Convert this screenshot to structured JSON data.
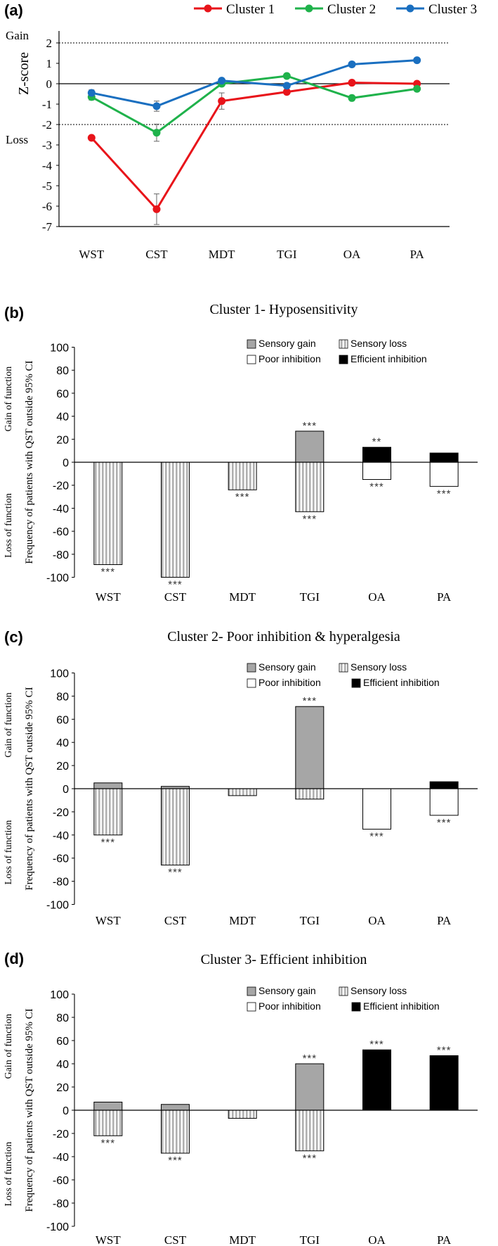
{
  "panels": [
    {
      "letter": "(a)"
    },
    {
      "letter": "(b)"
    },
    {
      "letter": "(c)"
    },
    {
      "letter": "(d)"
    }
  ],
  "chart_data": [
    {
      "type": "line",
      "panel": "(a)",
      "categories": [
        "WST",
        "CST",
        "MDT",
        "TGI",
        "OA",
        "PA"
      ],
      "ylabel": "Z-score",
      "ylim": [
        -7,
        2.5
      ],
      "yticks": [
        2,
        1,
        0,
        -1,
        -2,
        -3,
        -4,
        -5,
        -6,
        -7
      ],
      "reference_lines": [
        2,
        -2,
        0
      ],
      "annotations": [
        "Gain",
        "Loss"
      ],
      "legend_position": "top",
      "series": [
        {
          "name": "Cluster 1",
          "color": "#e8141a",
          "values": [
            -2.65,
            -6.15,
            -0.85,
            -0.4,
            0.05,
            0.0
          ],
          "errors": [
            0.1,
            0.75,
            0.4,
            0.12,
            0.05,
            0.08
          ]
        },
        {
          "name": "Cluster 2",
          "color": "#1fb24b",
          "values": [
            -0.65,
            -2.4,
            0.0,
            0.38,
            -0.7,
            -0.25
          ],
          "errors": [
            0.15,
            0.42,
            0.05,
            0.05,
            0.05,
            0.05
          ]
        },
        {
          "name": "Cluster 3",
          "color": "#1a6fc0",
          "values": [
            -0.45,
            -1.1,
            0.15,
            -0.1,
            0.95,
            1.15
          ],
          "errors": [
            0.15,
            0.25,
            0.05,
            0.05,
            0.05,
            0.05
          ]
        }
      ]
    },
    {
      "type": "bar",
      "panel": "(b)",
      "title": "Cluster 1- Hyposensitivity",
      "categories": [
        "WST",
        "CST",
        "MDT",
        "TGI",
        "OA",
        "PA"
      ],
      "ylabel": "Frequency of patients with QST outside 95% CI",
      "side_labels": [
        "Gain of function",
        "Loss of function"
      ],
      "ylim": [
        -100,
        100
      ],
      "yticks": [
        100,
        80,
        60,
        40,
        20,
        0,
        -20,
        -40,
        -60,
        -80,
        -100
      ],
      "legend": [
        "Sensory gain",
        "Sensory loss",
        "Poor inhibition",
        "Efficient inhibition"
      ],
      "series": [
        {
          "name": "Sensory gain",
          "values": [
            0,
            0,
            0,
            27,
            0,
            0
          ]
        },
        {
          "name": "Sensory loss",
          "values": [
            -89,
            -100,
            -24,
            -43,
            0,
            0
          ]
        },
        {
          "name": "Poor inhibition",
          "values": [
            0,
            0,
            0,
            0,
            -15,
            -21
          ]
        },
        {
          "name": "Efficient inhibition",
          "values": [
            0,
            0,
            0,
            0,
            13,
            8
          ]
        }
      ],
      "significance": [
        {
          "category": "WST",
          "value": -89,
          "label": "***"
        },
        {
          "category": "CST",
          "value": -100,
          "label": "***"
        },
        {
          "category": "MDT",
          "value": -24,
          "label": "***"
        },
        {
          "category": "TGI",
          "value": 27,
          "label": "***"
        },
        {
          "category": "TGI",
          "value": -43,
          "label": "***"
        },
        {
          "category": "OA",
          "value": 13,
          "label": "**"
        },
        {
          "category": "OA",
          "value": -15,
          "label": "***"
        },
        {
          "category": "PA",
          "value": -21,
          "label": "***"
        }
      ]
    },
    {
      "type": "bar",
      "panel": "(c)",
      "title": "Cluster 2- Poor inhibition & hyperalgesia",
      "categories": [
        "WST",
        "CST",
        "MDT",
        "TGI",
        "OA",
        "PA"
      ],
      "ylabel": "Frequency of patients with QST outside 95% CI",
      "side_labels": [
        "Gain of function",
        "Loss of function"
      ],
      "ylim": [
        -100,
        100
      ],
      "yticks": [
        100,
        80,
        60,
        40,
        20,
        0,
        -20,
        -40,
        -60,
        -80,
        -100
      ],
      "legend": [
        "Sensory gain",
        "Sensory loss",
        "Poor inhibition",
        "Efficient inhibition"
      ],
      "series": [
        {
          "name": "Sensory gain",
          "values": [
            5,
            2,
            0,
            71,
            0,
            0
          ]
        },
        {
          "name": "Sensory loss",
          "values": [
            -40,
            -66,
            -6,
            -9,
            0,
            0
          ]
        },
        {
          "name": "Poor inhibition",
          "values": [
            0,
            0,
            0,
            0,
            -35,
            -23
          ]
        },
        {
          "name": "Efficient inhibition",
          "values": [
            0,
            0,
            0,
            0,
            0,
            6
          ]
        }
      ],
      "significance": [
        {
          "category": "WST",
          "value": -40,
          "label": "***"
        },
        {
          "category": "CST",
          "value": -66,
          "label": "***"
        },
        {
          "category": "TGI",
          "value": 71,
          "label": "***"
        },
        {
          "category": "OA",
          "value": -35,
          "label": "***"
        },
        {
          "category": "PA",
          "value": -23,
          "label": "***"
        }
      ]
    },
    {
      "type": "bar",
      "panel": "(d)",
      "title": "Cluster 3- Efficient inhibition",
      "categories": [
        "WST",
        "CST",
        "MDT",
        "TGI",
        "OA",
        "PA"
      ],
      "ylabel": "Frequency of patients with QST outside 95% CI",
      "side_labels": [
        "Gain of function",
        "Loss of function"
      ],
      "ylim": [
        -100,
        100
      ],
      "yticks": [
        100,
        80,
        60,
        40,
        20,
        0,
        -20,
        -40,
        -60,
        -80,
        -100
      ],
      "legend": [
        "Sensory gain",
        "Sensory loss",
        "Poor inhibition",
        "Efficient inhibition"
      ],
      "series": [
        {
          "name": "Sensory gain",
          "values": [
            7,
            5,
            0,
            40,
            0,
            0
          ]
        },
        {
          "name": "Sensory loss",
          "values": [
            -22,
            -37,
            -7,
            -35,
            0,
            0
          ]
        },
        {
          "name": "Poor inhibition",
          "values": [
            0,
            0,
            0,
            0,
            0,
            0
          ]
        },
        {
          "name": "Efficient inhibition",
          "values": [
            0,
            0,
            0,
            0,
            52,
            47
          ]
        }
      ],
      "significance": [
        {
          "category": "WST",
          "value": -22,
          "label": "***"
        },
        {
          "category": "CST",
          "value": -37,
          "label": "***"
        },
        {
          "category": "TGI",
          "value": 40,
          "label": "***"
        },
        {
          "category": "TGI",
          "value": -35,
          "label": "***"
        },
        {
          "category": "OA",
          "value": 52,
          "label": "***"
        },
        {
          "category": "PA",
          "value": 47,
          "label": "***"
        }
      ]
    }
  ],
  "colors": {
    "sensory_gain": "#a6a6a6",
    "sensory_loss_stripe": "#b0b0b0",
    "poor_inhibition": "#ffffff",
    "efficient_inhibition": "#000000"
  }
}
